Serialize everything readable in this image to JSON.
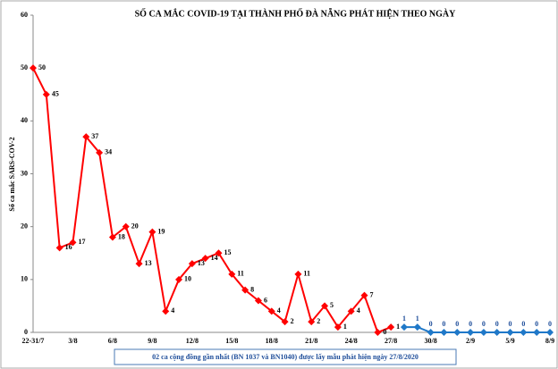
{
  "chart_data": {
    "type": "line",
    "title": "SỐ CA MẮC COVID-19 TẠI THÀNH PHỐ ĐÀ NẴNG PHÁT HIỆN THEO NGÀY",
    "y_label": "Số ca mắc SARS-COV-2",
    "annotation": "02 ca cộng đồng gần nhất (BN 1037 và BN1040) được lấy mẫu phát hiện ngày 27/8/2020",
    "categories": [
      "22-31/7",
      null,
      null,
      "3/8",
      null,
      null,
      "6/8",
      null,
      null,
      "9/8",
      null,
      null,
      "12/8",
      null,
      null,
      "15/8",
      null,
      null,
      "18/8",
      null,
      null,
      "21/8",
      null,
      null,
      "24/8",
      null,
      null,
      "27/8",
      null,
      null,
      "30/8",
      null,
      null,
      "2/9",
      null,
      null,
      "5/9",
      null,
      null,
      "8/9"
    ],
    "series": [
      {
        "name": "red",
        "color": "#ff0000",
        "values": [
          50,
          45,
          16,
          17,
          37,
          34,
          18,
          20,
          13,
          19,
          4,
          10,
          13,
          14,
          15,
          11,
          8,
          6,
          4,
          2,
          11,
          2,
          5,
          1,
          4,
          7,
          0,
          1,
          null,
          null,
          null,
          null,
          null,
          null,
          null,
          null,
          null,
          null,
          null,
          null
        ]
      },
      {
        "name": "blue",
        "color": "#1f78c8",
        "values": [
          null,
          null,
          null,
          null,
          null,
          null,
          null,
          null,
          null,
          null,
          null,
          null,
          null,
          null,
          null,
          null,
          null,
          null,
          null,
          null,
          null,
          null,
          null,
          null,
          null,
          null,
          null,
          null,
          1,
          1,
          0,
          0,
          0,
          0,
          0,
          0,
          0,
          0,
          0,
          0
        ]
      }
    ],
    "ylim": [
      0,
      60
    ],
    "yticks": [
      0,
      10,
      20,
      30,
      40,
      50,
      60
    ]
  }
}
